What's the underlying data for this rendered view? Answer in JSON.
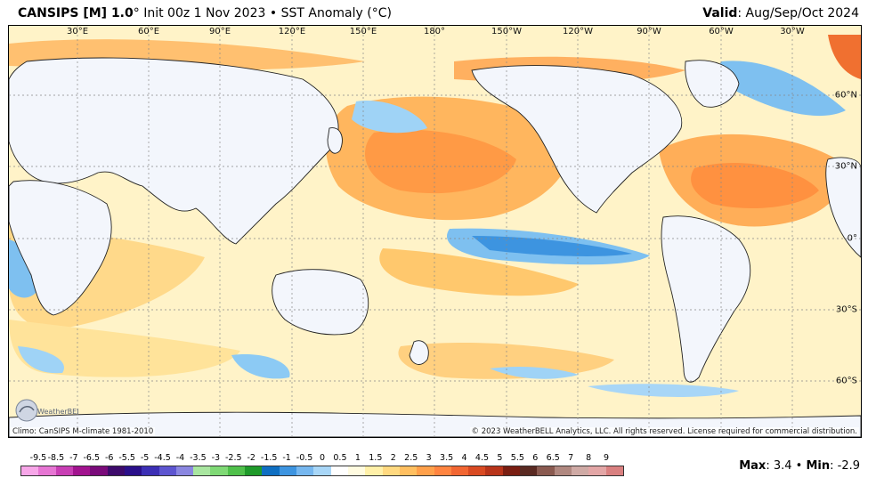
{
  "header": {
    "model": "CANSIPS [M] 1.0",
    "degree_mark": "°",
    "init": "Init 00z 1 Nov 2023",
    "bullet": "•",
    "variable": "SST Anomaly (°C)",
    "valid_label": "Valid",
    "valid_value": ": Aug/Sep/Oct 2024"
  },
  "map": {
    "lon_labels": [
      "30°E",
      "60°E",
      "90°E",
      "120°E",
      "150°E",
      "180°",
      "150°W",
      "120°W",
      "90°W",
      "60°W",
      "30°W"
    ],
    "lat_labels": [
      "60°N",
      "30°N",
      "0°",
      "30°S",
      "60°S"
    ],
    "climo": "Climo: CanSIPS M-climate 1981-2010",
    "copyright": "© 2023 WeatherBELL Analytics, LLC. All rights reserved. License required for commercial distribution.",
    "logo_text": "WeatherBELL"
  },
  "colorbar": {
    "labels": [
      "-9.5",
      "-8.5",
      "-7",
      "-6.5",
      "-6",
      "-5.5",
      "-5",
      "-4.5",
      "-4",
      "-3.5",
      "-3",
      "-2.5",
      "-2",
      "-1.5",
      "-1",
      "-0.5",
      "0",
      "0.5",
      "1",
      "1.5",
      "2",
      "2.5",
      "3",
      "3.5",
      "4",
      "4.5",
      "5",
      "5.5",
      "6",
      "6.5",
      "7",
      "8",
      "9"
    ],
    "colors": [
      "#f7a6e8",
      "#e675d3",
      "#c83eb4",
      "#a2138f",
      "#7a0a7a",
      "#3d0a6b",
      "#2a0f8a",
      "#3c2fb5",
      "#5d55d0",
      "#8a86e0",
      "#a9e6a0",
      "#7fd975",
      "#4fc04a",
      "#1f9a2a",
      "#0f6fc2",
      "#3d94e0",
      "#76b7ef",
      "#a8d6f7",
      "#ffffff",
      "#fffbe0",
      "#fff0a8",
      "#ffd980",
      "#ffbf60",
      "#ffa04a",
      "#ff8440",
      "#f26632",
      "#d94a22",
      "#b8341a",
      "#7a1e12",
      "#5a2a22",
      "#8a5a50",
      "#b08880",
      "#cfaaa5",
      "#e3a6a6",
      "#d98080"
    ]
  },
  "stats": {
    "max_label": "Max",
    "max_value": ": 3.4",
    "sep": "•",
    "min_label": "Min",
    "min_value": ": -2.9"
  }
}
